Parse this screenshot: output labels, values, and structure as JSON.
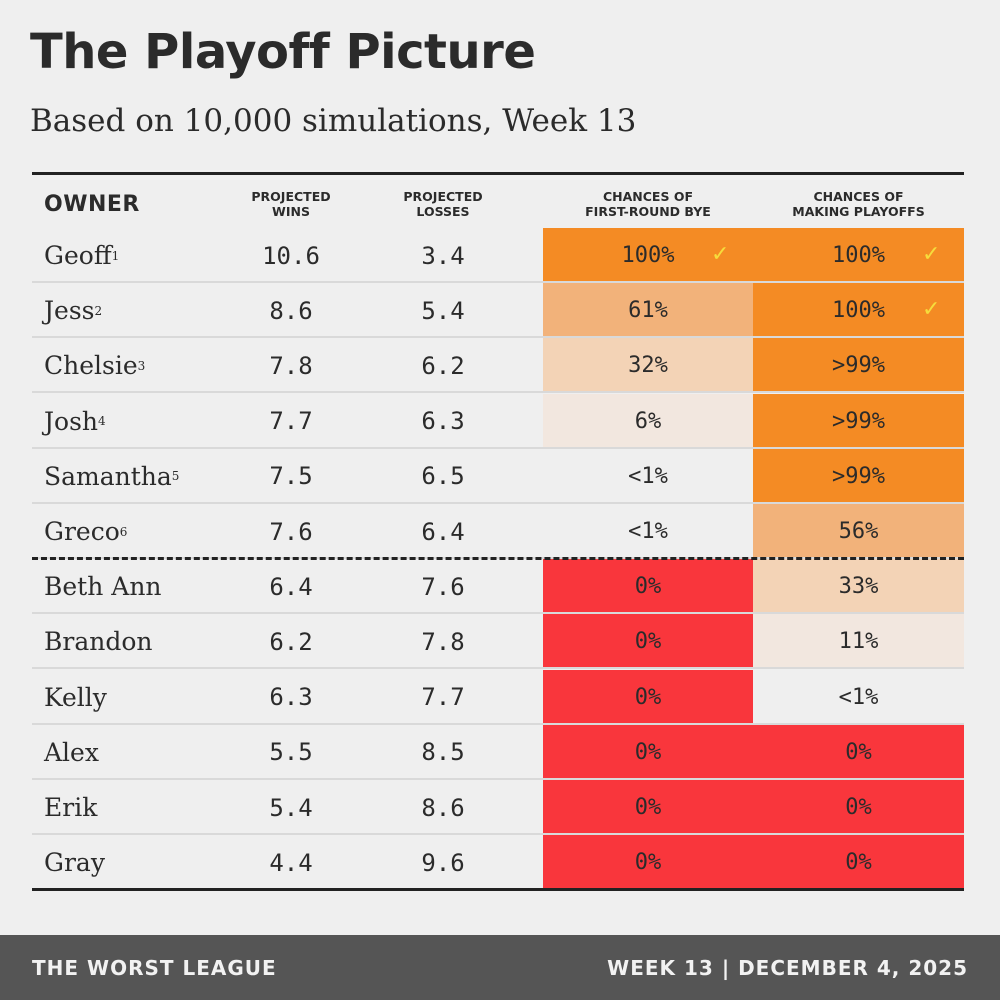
{
  "chart_data": {
    "type": "table",
    "title": "The Playoff Picture",
    "subtitle": "Based on 10,000 simulations, Week 13",
    "columns": {
      "owner": "OWNER",
      "wins": [
        "PROJECTED",
        "WINS"
      ],
      "losses": [
        "PROJECTED",
        "LOSSES"
      ],
      "bye": [
        "CHANCES OF",
        "FIRST-ROUND BYE"
      ],
      "playoffs": [
        "CHANCES OF",
        "MAKING PLAYOFFS"
      ]
    },
    "rows": [
      {
        "owner": "Geoff",
        "seed": "1",
        "wins": "10.6",
        "losses": "3.4",
        "bye": "100%",
        "bye_value": 100,
        "bye_clinched": true,
        "playoffs": "100%",
        "playoffs_value": 100,
        "playoffs_clinched": true
      },
      {
        "owner": "Jess",
        "seed": "2",
        "wins": "8.6",
        "losses": "5.4",
        "bye": "61%",
        "bye_value": 61,
        "bye_clinched": false,
        "playoffs": "100%",
        "playoffs_value": 100,
        "playoffs_clinched": true
      },
      {
        "owner": "Chelsie",
        "seed": "3",
        "wins": "7.8",
        "losses": "6.2",
        "bye": "32%",
        "bye_value": 32,
        "bye_clinched": false,
        "playoffs": ">99%",
        "playoffs_value": 99.5,
        "playoffs_clinched": false
      },
      {
        "owner": "Josh",
        "seed": "4",
        "wins": "7.7",
        "losses": "6.3",
        "bye": "6%",
        "bye_value": 6,
        "bye_clinched": false,
        "playoffs": ">99%",
        "playoffs_value": 99.5,
        "playoffs_clinched": false
      },
      {
        "owner": "Samantha",
        "seed": "5",
        "wins": "7.5",
        "losses": "6.5",
        "bye": "<1%",
        "bye_value": 0.5,
        "bye_clinched": false,
        "playoffs": ">99%",
        "playoffs_value": 99.5,
        "playoffs_clinched": false
      },
      {
        "owner": "Greco",
        "seed": "6",
        "wins": "7.6",
        "losses": "6.4",
        "bye": "<1%",
        "bye_value": 0.5,
        "bye_clinched": false,
        "playoffs": "56%",
        "playoffs_value": 56,
        "playoffs_clinched": false
      },
      {
        "owner": "Beth Ann",
        "seed": "",
        "wins": "6.4",
        "losses": "7.6",
        "bye": "0%",
        "bye_value": 0,
        "bye_clinched": false,
        "playoffs": "33%",
        "playoffs_value": 33,
        "playoffs_clinched": false
      },
      {
        "owner": "Brandon",
        "seed": "",
        "wins": "6.2",
        "losses": "7.8",
        "bye": "0%",
        "bye_value": 0,
        "bye_clinched": false,
        "playoffs": "11%",
        "playoffs_value": 11,
        "playoffs_clinched": false
      },
      {
        "owner": "Kelly",
        "seed": "",
        "wins": "6.3",
        "losses": "7.7",
        "bye": "0%",
        "bye_value": 0,
        "bye_clinched": false,
        "playoffs": "<1%",
        "playoffs_value": 0.5,
        "playoffs_clinched": false
      },
      {
        "owner": "Alex",
        "seed": "",
        "wins": "5.5",
        "losses": "8.5",
        "bye": "0%",
        "bye_value": 0,
        "bye_clinched": false,
        "playoffs": "0%",
        "playoffs_value": 0,
        "playoffs_clinched": false
      },
      {
        "owner": "Erik",
        "seed": "",
        "wins": "5.4",
        "losses": "8.6",
        "bye": "0%",
        "bye_value": 0,
        "bye_clinched": false,
        "playoffs": "0%",
        "playoffs_value": 0,
        "playoffs_clinched": false
      },
      {
        "owner": "Gray",
        "seed": "",
        "wins": "4.4",
        "losses": "9.6",
        "bye": "0%",
        "bye_value": 0,
        "bye_clinched": false,
        "playoffs": "0%",
        "playoffs_value": 0,
        "playoffs_clinched": false
      }
    ],
    "playoff_cutoff_after_row": 6,
    "check_symbol": "✓",
    "colors": {
      "full": "#f48b24",
      "high": "#f2b27a",
      "mid": "#f3d3b6",
      "low": "#f2e7df",
      "none": "#efefef",
      "eliminated": "#f9363c",
      "check": "#f6dc3c"
    }
  },
  "footer": {
    "league": "THE WORST LEAGUE",
    "date": "WEEK 13 | DECEMBER 4, 2025"
  }
}
